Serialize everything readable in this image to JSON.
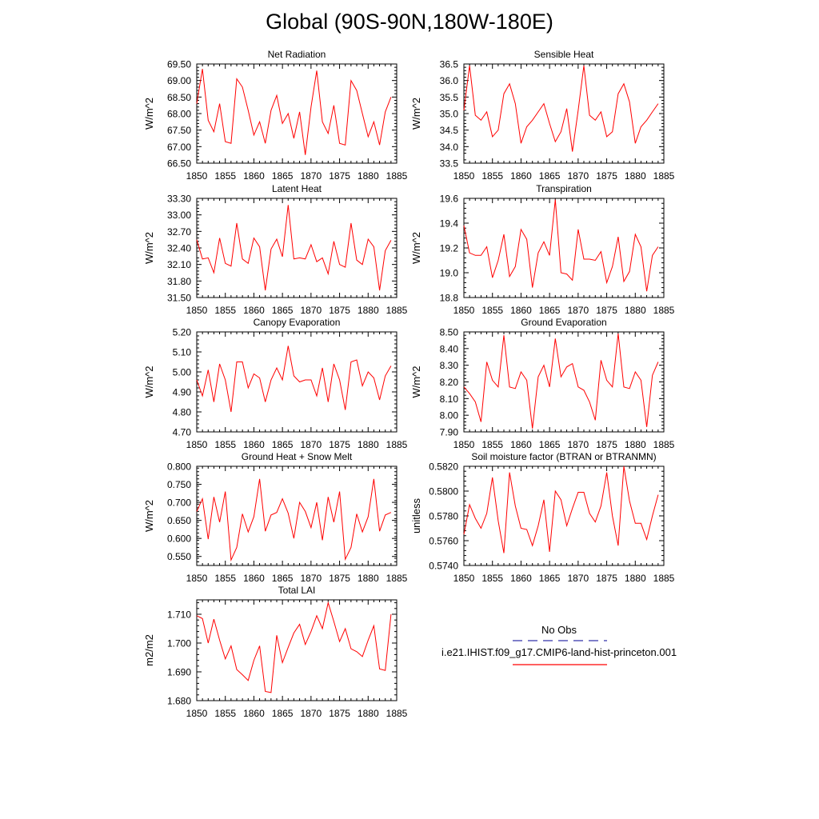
{
  "title": "Global (90S-90N,180W-180E)",
  "legend": {
    "obs_label": "No Obs",
    "obs_color": "#3333aa",
    "model_label": "i.e21.IHIST.f09_g17.CMIP6-land-hist-princeton.001",
    "model_color": "#ff0000"
  },
  "chart_data": [
    {
      "type": "line",
      "title": "Net Radiation",
      "ylabel": "W/m^2",
      "xlim": [
        1850,
        1885
      ],
      "ylim": [
        66.5,
        69.5
      ],
      "xticks": [
        "1850",
        "1855",
        "1860",
        "1865",
        "1870",
        "1875",
        "1880",
        "1885"
      ],
      "yticks": [
        "66.50",
        "67.00",
        "67.50",
        "68.00",
        "68.50",
        "69.00",
        "69.50"
      ],
      "series": [
        {
          "color": "#ff0000",
          "x": [
            1850,
            1851,
            1852,
            1853,
            1854,
            1855,
            1856,
            1857,
            1858,
            1859,
            1860,
            1861,
            1862,
            1863,
            1864,
            1865,
            1866,
            1867,
            1868,
            1869,
            1870,
            1871,
            1872,
            1873,
            1874,
            1875,
            1876,
            1877,
            1878,
            1879,
            1880,
            1881,
            1882,
            1883,
            1884
          ],
          "values": [
            68.3,
            69.35,
            67.8,
            67.45,
            68.3,
            67.15,
            67.1,
            69.05,
            68.8,
            68.1,
            67.35,
            67.75,
            67.1,
            68.1,
            68.55,
            67.7,
            68.0,
            67.25,
            68.05,
            66.75,
            68.2,
            69.3,
            67.75,
            67.4,
            68.25,
            67.1,
            67.05,
            69.0,
            68.7,
            68.0,
            67.3,
            67.75,
            67.05,
            68.05,
            68.5
          ]
        }
      ]
    },
    {
      "type": "line",
      "title": "Sensible Heat",
      "ylabel": "W/m^2",
      "xlim": [
        1850,
        1885
      ],
      "ylim": [
        33.5,
        36.5
      ],
      "xticks": [
        "1850",
        "1855",
        "1860",
        "1865",
        "1870",
        "1875",
        "1880",
        "1885"
      ],
      "yticks": [
        "33.5",
        "34.0",
        "34.5",
        "35.0",
        "35.5",
        "36.0",
        "36.5"
      ],
      "series": [
        {
          "color": "#ff0000",
          "x": [
            1850,
            1851,
            1852,
            1853,
            1854,
            1855,
            1856,
            1857,
            1858,
            1859,
            1860,
            1861,
            1862,
            1863,
            1864,
            1865,
            1866,
            1867,
            1868,
            1869,
            1870,
            1871,
            1872,
            1873,
            1874,
            1875,
            1876,
            1877,
            1878,
            1879,
            1880,
            1881,
            1882,
            1883,
            1884
          ],
          "values": [
            35.1,
            36.45,
            34.95,
            34.8,
            35.05,
            34.3,
            34.5,
            35.6,
            35.9,
            35.3,
            34.1,
            34.6,
            34.8,
            35.05,
            35.3,
            34.7,
            34.15,
            34.45,
            35.15,
            33.85,
            35.1,
            36.45,
            34.95,
            34.8,
            35.05,
            34.3,
            34.45,
            35.6,
            35.9,
            35.35,
            34.1,
            34.6,
            34.8,
            35.05,
            35.3
          ]
        }
      ]
    },
    {
      "type": "line",
      "title": "Latent Heat",
      "ylabel": "W/m^2",
      "xlim": [
        1850,
        1885
      ],
      "ylim": [
        31.5,
        33.3
      ],
      "xticks": [
        "1850",
        "1855",
        "1860",
        "1865",
        "1870",
        "1875",
        "1880",
        "1885"
      ],
      "yticks": [
        "31.50",
        "31.80",
        "32.10",
        "32.40",
        "32.70",
        "33.00",
        "33.30"
      ],
      "series": [
        {
          "color": "#ff0000",
          "x": [
            1850,
            1851,
            1852,
            1853,
            1854,
            1855,
            1856,
            1857,
            1858,
            1859,
            1860,
            1861,
            1862,
            1863,
            1864,
            1865,
            1866,
            1867,
            1868,
            1869,
            1870,
            1871,
            1872,
            1873,
            1874,
            1875,
            1876,
            1877,
            1878,
            1879,
            1880,
            1881,
            1882,
            1883,
            1884
          ],
          "values": [
            32.55,
            32.2,
            32.22,
            31.95,
            32.58,
            32.12,
            32.07,
            32.85,
            32.2,
            32.12,
            32.58,
            32.42,
            31.63,
            32.38,
            32.56,
            32.24,
            33.18,
            32.2,
            32.22,
            32.2,
            32.46,
            32.15,
            32.22,
            31.93,
            32.52,
            32.1,
            32.05,
            32.85,
            32.18,
            32.1,
            32.56,
            32.42,
            31.63,
            32.35,
            32.54
          ]
        }
      ]
    },
    {
      "type": "line",
      "title": "Transpiration",
      "ylabel": "W/m^2",
      "xlim": [
        1850,
        1885
      ],
      "ylim": [
        18.8,
        19.6
      ],
      "xticks": [
        "1850",
        "1855",
        "1860",
        "1865",
        "1870",
        "1875",
        "1880",
        "1885"
      ],
      "yticks": [
        "18.8",
        "19.0",
        "19.2",
        "19.4",
        "19.6"
      ],
      "series": [
        {
          "color": "#ff0000",
          "x": [
            1850,
            1851,
            1852,
            1853,
            1854,
            1855,
            1856,
            1857,
            1858,
            1859,
            1860,
            1861,
            1862,
            1863,
            1864,
            1865,
            1866,
            1867,
            1868,
            1869,
            1870,
            1871,
            1872,
            1873,
            1874,
            1875,
            1876,
            1877,
            1878,
            1879,
            1880,
            1881,
            1882,
            1883,
            1884
          ],
          "values": [
            19.38,
            19.16,
            19.14,
            19.14,
            19.21,
            18.96,
            19.1,
            19.31,
            18.97,
            19.05,
            19.35,
            19.27,
            18.88,
            19.16,
            19.25,
            19.14,
            19.59,
            19.0,
            18.99,
            18.94,
            19.35,
            19.11,
            19.11,
            19.1,
            19.17,
            18.92,
            19.05,
            19.29,
            18.93,
            19.01,
            19.31,
            19.21,
            18.85,
            19.14,
            19.21
          ]
        }
      ]
    },
    {
      "type": "line",
      "title": "Canopy Evaporation",
      "ylabel": "W/m^2",
      "xlim": [
        1850,
        1885
      ],
      "ylim": [
        4.7,
        5.2
      ],
      "xticks": [
        "1850",
        "1855",
        "1860",
        "1865",
        "1870",
        "1875",
        "1880",
        "1885"
      ],
      "yticks": [
        "4.70",
        "4.80",
        "4.90",
        "5.00",
        "5.10",
        "5.20"
      ],
      "series": [
        {
          "color": "#ff0000",
          "x": [
            1850,
            1851,
            1852,
            1853,
            1854,
            1855,
            1856,
            1857,
            1858,
            1859,
            1860,
            1861,
            1862,
            1863,
            1864,
            1865,
            1866,
            1867,
            1868,
            1869,
            1870,
            1871,
            1872,
            1873,
            1874,
            1875,
            1876,
            1877,
            1878,
            1879,
            1880,
            1881,
            1882,
            1883,
            1884
          ],
          "values": [
            4.96,
            4.88,
            5.01,
            4.85,
            5.04,
            4.96,
            4.8,
            5.05,
            5.05,
            4.92,
            4.99,
            4.97,
            4.85,
            4.96,
            5.02,
            4.96,
            5.13,
            4.98,
            4.95,
            4.96,
            4.96,
            4.88,
            5.02,
            4.85,
            5.04,
            4.96,
            4.81,
            5.05,
            5.06,
            4.93,
            5.0,
            4.97,
            4.86,
            4.98,
            5.03
          ]
        }
      ]
    },
    {
      "type": "line",
      "title": "Ground Evaporation",
      "ylabel": "W/m^2",
      "xlim": [
        1850,
        1885
      ],
      "ylim": [
        7.9,
        8.5
      ],
      "xticks": [
        "1850",
        "1855",
        "1860",
        "1865",
        "1870",
        "1875",
        "1880",
        "1885"
      ],
      "yticks": [
        "7.90",
        "8.00",
        "8.10",
        "8.20",
        "8.30",
        "8.40",
        "8.50"
      ],
      "series": [
        {
          "color": "#ff0000",
          "x": [
            1850,
            1851,
            1852,
            1853,
            1854,
            1855,
            1856,
            1857,
            1858,
            1859,
            1860,
            1861,
            1862,
            1863,
            1864,
            1865,
            1866,
            1867,
            1868,
            1869,
            1870,
            1871,
            1872,
            1873,
            1874,
            1875,
            1876,
            1877,
            1878,
            1879,
            1880,
            1881,
            1882,
            1883,
            1884
          ],
          "values": [
            8.17,
            8.13,
            8.08,
            7.96,
            8.32,
            8.21,
            8.17,
            8.48,
            8.17,
            8.16,
            8.26,
            8.21,
            7.92,
            8.23,
            8.3,
            8.17,
            8.46,
            8.23,
            8.29,
            8.31,
            8.17,
            8.15,
            8.08,
            7.97,
            8.33,
            8.21,
            8.17,
            8.49,
            8.17,
            8.16,
            8.26,
            8.21,
            7.93,
            8.24,
            8.32
          ]
        }
      ]
    },
    {
      "type": "line",
      "title": "Ground Heat + Snow Melt",
      "ylabel": "W/m^2",
      "xlim": [
        1850,
        1885
      ],
      "ylim": [
        0.525,
        0.8
      ],
      "xticks": [
        "1850",
        "1855",
        "1860",
        "1865",
        "1870",
        "1875",
        "1880",
        "1885"
      ],
      "yticks": [
        "0.550",
        "0.600",
        "0.650",
        "0.700",
        "0.750",
        "0.800"
      ],
      "series": [
        {
          "color": "#ff0000",
          "x": [
            1850,
            1851,
            1852,
            1853,
            1854,
            1855,
            1856,
            1857,
            1858,
            1859,
            1860,
            1861,
            1862,
            1863,
            1864,
            1865,
            1866,
            1867,
            1868,
            1869,
            1870,
            1871,
            1872,
            1873,
            1874,
            1875,
            1876,
            1877,
            1878,
            1879,
            1880,
            1881,
            1882,
            1883,
            1884
          ],
          "values": [
            0.675,
            0.71,
            0.598,
            0.715,
            0.645,
            0.73,
            0.54,
            0.575,
            0.668,
            0.618,
            0.66,
            0.765,
            0.62,
            0.665,
            0.672,
            0.71,
            0.67,
            0.6,
            0.7,
            0.675,
            0.63,
            0.7,
            0.595,
            0.715,
            0.645,
            0.73,
            0.542,
            0.575,
            0.668,
            0.618,
            0.66,
            0.765,
            0.62,
            0.665,
            0.672
          ]
        }
      ]
    },
    {
      "type": "line",
      "title": "Soil moisture factor (BTRAN or BTRANMN)",
      "ylabel": "unitless",
      "xlim": [
        1850,
        1885
      ],
      "ylim": [
        0.574,
        0.582
      ],
      "xticks": [
        "1850",
        "1855",
        "1860",
        "1865",
        "1870",
        "1875",
        "1880",
        "1885"
      ],
      "yticks": [
        "0.5740",
        "0.5760",
        "0.5780",
        "0.5800",
        "0.5820"
      ],
      "series": [
        {
          "color": "#ff0000",
          "x": [
            1850,
            1851,
            1852,
            1853,
            1854,
            1855,
            1856,
            1857,
            1858,
            1859,
            1860,
            1861,
            1862,
            1863,
            1864,
            1865,
            1866,
            1867,
            1868,
            1869,
            1870,
            1871,
            1872,
            1873,
            1874,
            1875,
            1876,
            1877,
            1878,
            1879,
            1880,
            1881,
            1882,
            1883,
            1884
          ],
          "values": [
            0.5765,
            0.5789,
            0.5778,
            0.577,
            0.5782,
            0.5811,
            0.5776,
            0.575,
            0.5815,
            0.5788,
            0.577,
            0.5769,
            0.5756,
            0.5772,
            0.5793,
            0.5751,
            0.58,
            0.5793,
            0.5772,
            0.5786,
            0.5799,
            0.5799,
            0.5782,
            0.5775,
            0.5788,
            0.5815,
            0.578,
            0.5756,
            0.582,
            0.5792,
            0.5774,
            0.5774,
            0.5761,
            0.578,
            0.5797
          ]
        }
      ]
    },
    {
      "type": "line",
      "title": "Total LAI",
      "ylabel": "m2/m2",
      "xlim": [
        1850,
        1885
      ],
      "ylim": [
        1.68,
        1.715
      ],
      "xticks": [
        "1850",
        "1855",
        "1860",
        "1865",
        "1870",
        "1875",
        "1880",
        "1885"
      ],
      "yticks": [
        "1.680",
        "1.690",
        "1.700",
        "1.710"
      ],
      "series": [
        {
          "color": "#ff0000",
          "x": [
            1850,
            1851,
            1852,
            1853,
            1854,
            1855,
            1856,
            1857,
            1858,
            1859,
            1860,
            1861,
            1862,
            1863,
            1864,
            1865,
            1866,
            1867,
            1868,
            1869,
            1870,
            1871,
            1872,
            1873,
            1874,
            1875,
            1876,
            1877,
            1878,
            1879,
            1880,
            1881,
            1882,
            1883,
            1884
          ],
          "values": [
            1.7095,
            1.7085,
            1.7,
            1.7083,
            1.701,
            1.6945,
            1.699,
            1.6908,
            1.689,
            1.687,
            1.694,
            1.699,
            1.6832,
            1.6828,
            1.7027,
            1.6932,
            1.6985,
            1.7035,
            1.7065,
            1.6995,
            1.704,
            1.7095,
            1.705,
            1.714,
            1.7075,
            1.7005,
            1.705,
            1.698,
            1.697,
            1.6953,
            1.701,
            1.706,
            1.691,
            1.6905,
            1.71
          ]
        }
      ]
    }
  ]
}
